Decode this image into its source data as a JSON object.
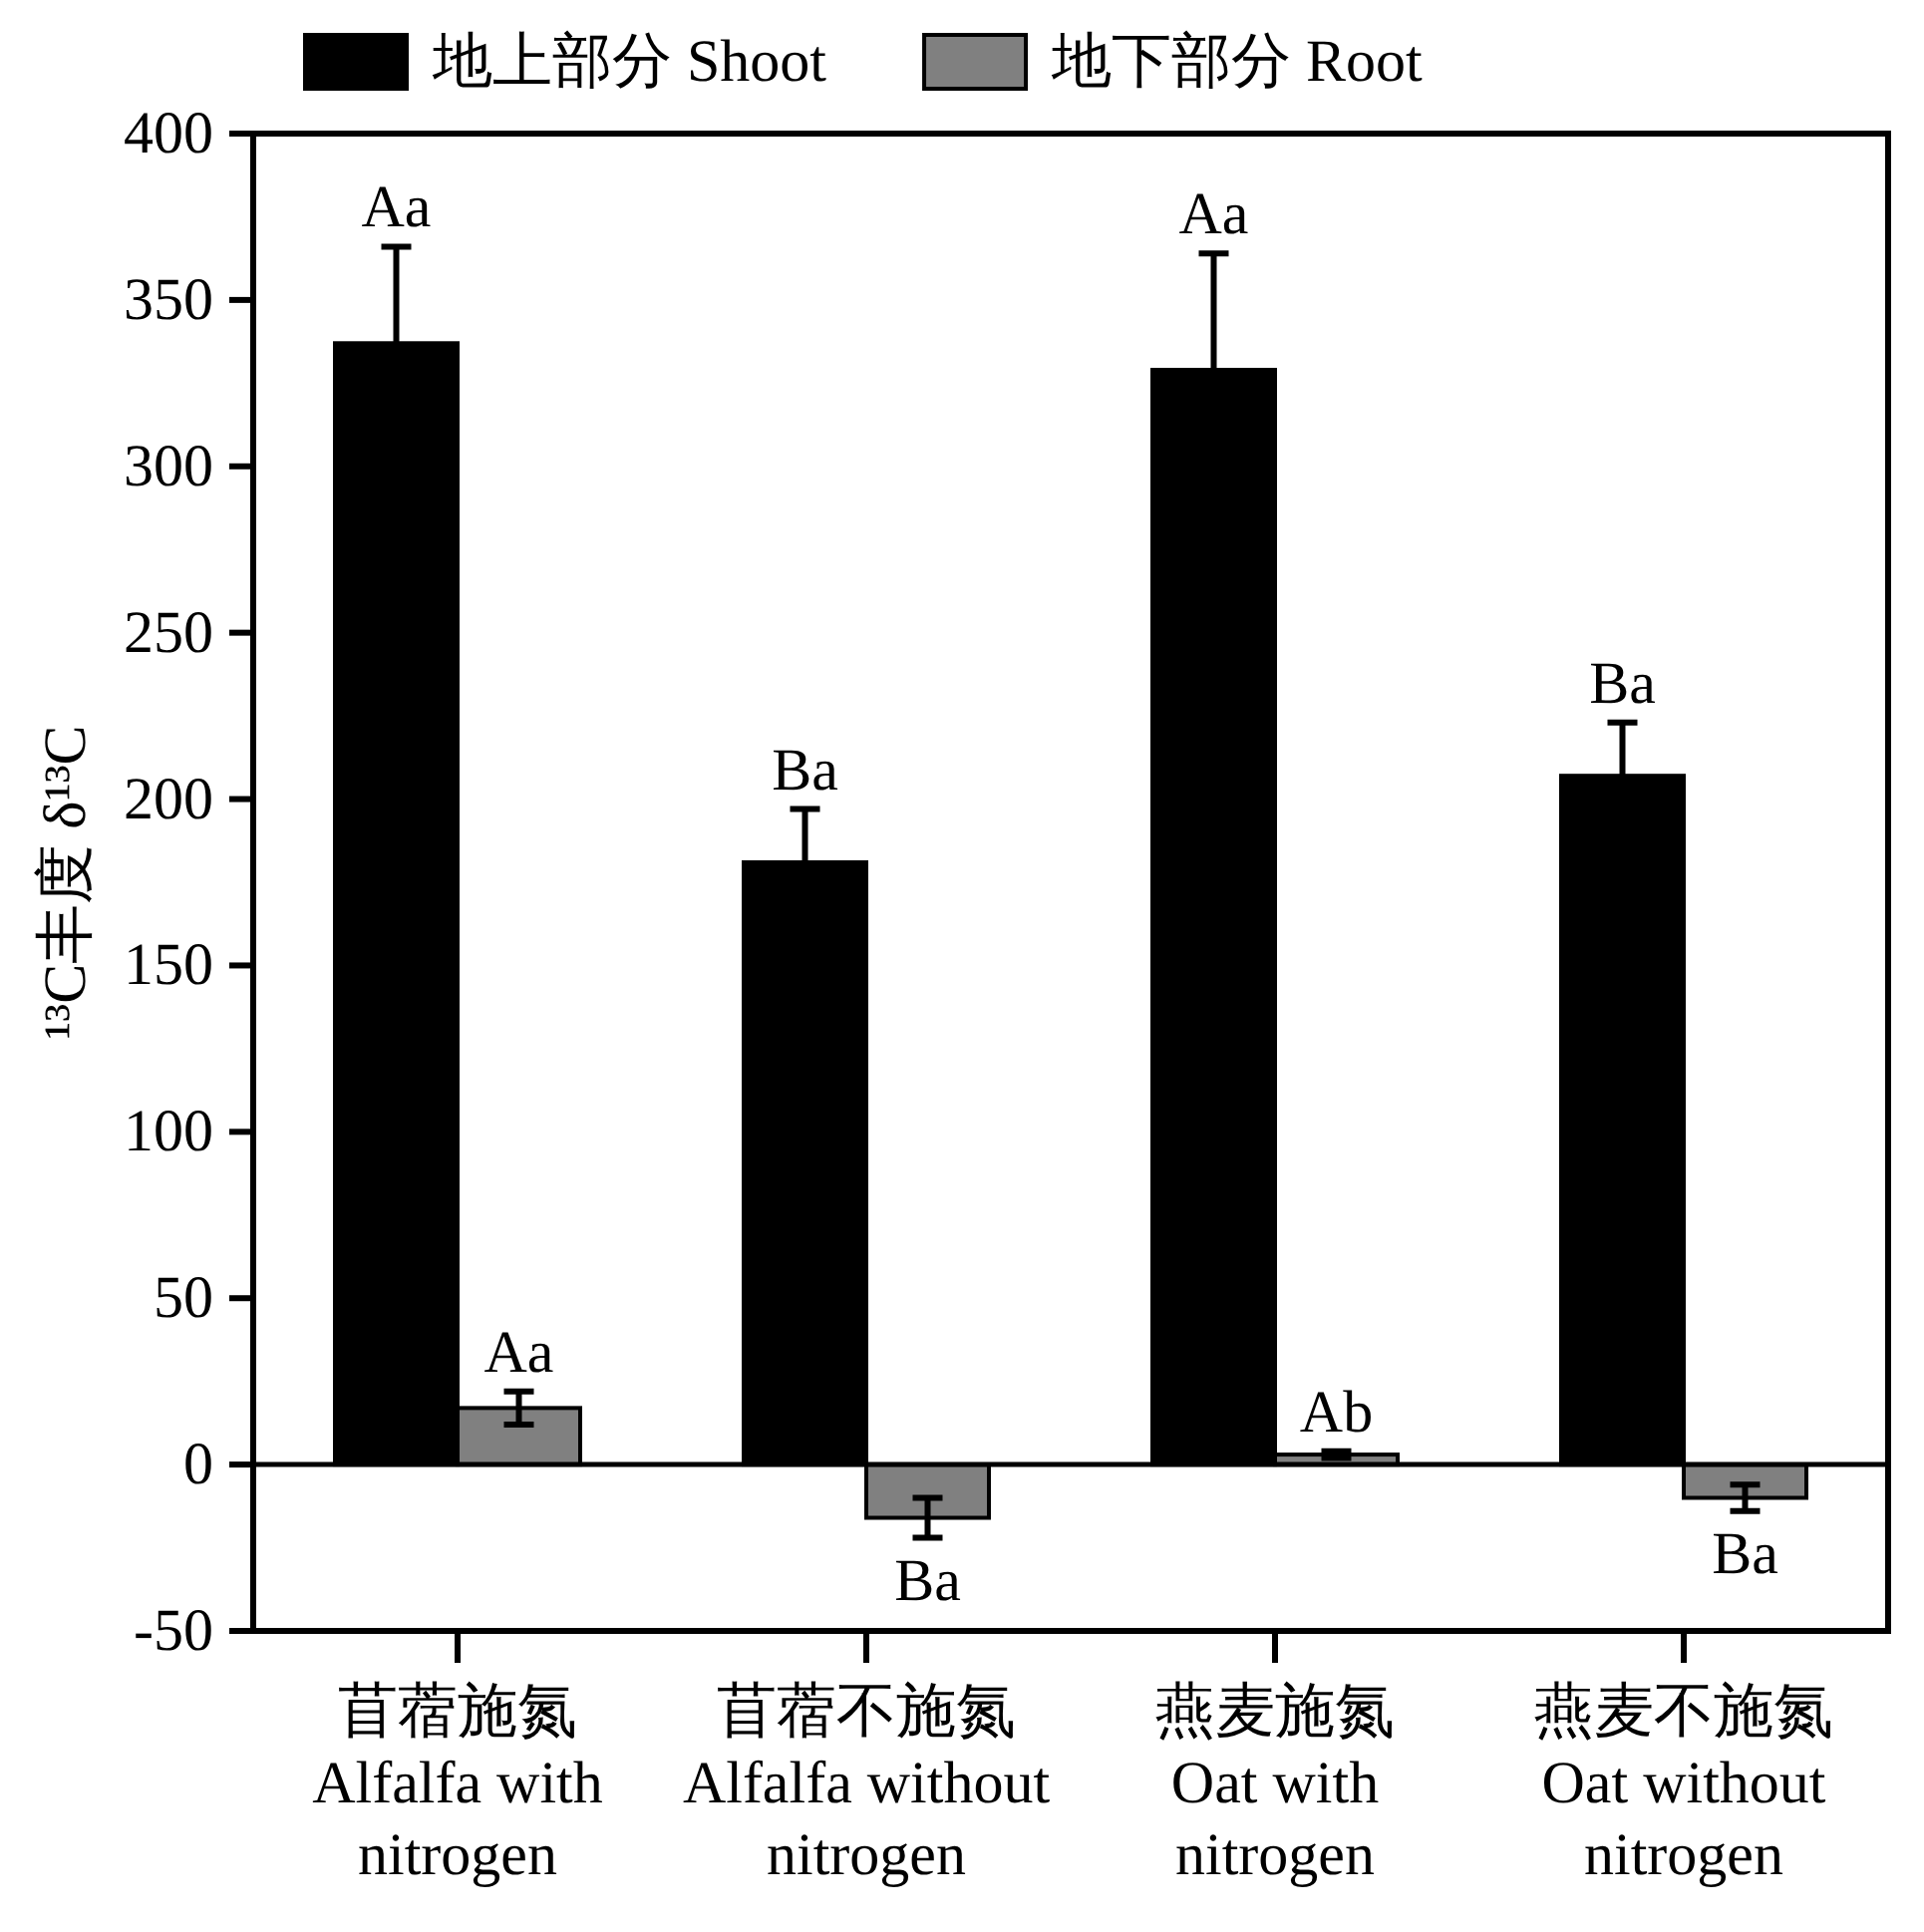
{
  "chart_data": {
    "type": "bar",
    "ylabel": "¹³C丰度 δ¹³C",
    "categories": [
      "苜蓿施氮\nAlfalfa with\nnitrogen",
      "苜蓿不施氮\nAlfalfa without\nnitrogen",
      "燕麦施氮\nOat with\nnitrogen",
      "燕麦不施氮\nOat without\nnitrogen"
    ],
    "series": [
      {
        "name": "地上部分 Shoot",
        "color": "#000000",
        "values": [
          337,
          181,
          329,
          207
        ],
        "errors": [
          29,
          16,
          35,
          16
        ],
        "value_labels": [
          "Aa",
          "Ba",
          "Aa",
          "Ba"
        ]
      },
      {
        "name": "地下部分 Root",
        "color": "#808080",
        "values": [
          17,
          -16,
          3,
          -10
        ],
        "errors": [
          5,
          6,
          1,
          4
        ],
        "value_labels": [
          "Aa",
          "Ba",
          "Ab",
          "Ba"
        ]
      }
    ],
    "ylim": [
      -50,
      400
    ],
    "yticks": [
      -50,
      0,
      50,
      100,
      150,
      200,
      250,
      300,
      350,
      400
    ],
    "ref_lines": [
      {
        "axis": "y",
        "value": 0
      }
    ],
    "legend": "top"
  }
}
